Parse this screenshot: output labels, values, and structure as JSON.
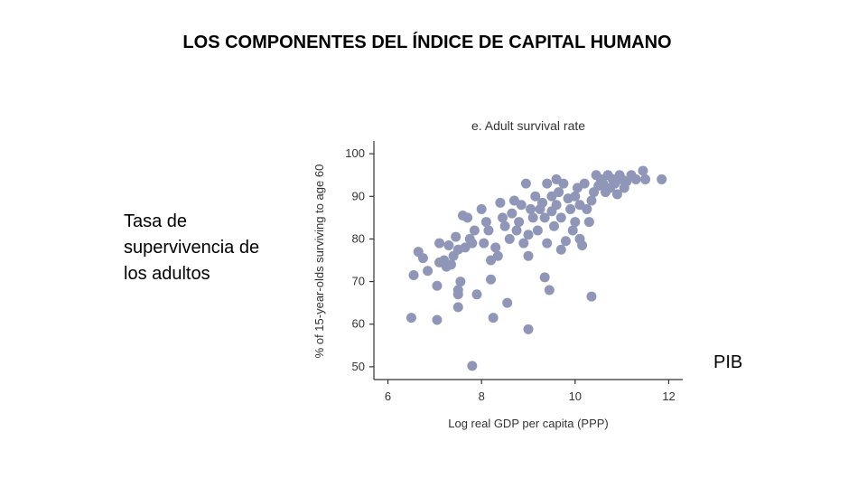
{
  "slide": {
    "title": "LOS COMPONENTES DEL ÍNDICE DE CAPITAL HUMANO",
    "side_label_lines": [
      "Tasa de",
      "supervivencia de",
      "los adultos"
    ],
    "x_annotation": "PIB"
  },
  "chart_data": {
    "type": "scatter",
    "title": "e. Adult survival rate",
    "xlabel": "Log real GDP per capita (PPP)",
    "ylabel": "% of 15-year-olds surviving to age 60",
    "xlim": [
      5.7,
      12.3
    ],
    "ylim": [
      47,
      103
    ],
    "xticks": [
      6,
      8,
      10,
      12
    ],
    "yticks": [
      50,
      60,
      70,
      80,
      90,
      100
    ],
    "grid": false,
    "marker_color": "#8f96b8",
    "points": [
      [
        6.5,
        61.5
      ],
      [
        6.55,
        71.5
      ],
      [
        6.65,
        77
      ],
      [
        6.75,
        75.5
      ],
      [
        6.85,
        72.5
      ],
      [
        7.05,
        61
      ],
      [
        7.05,
        69
      ],
      [
        7.1,
        79
      ],
      [
        7.1,
        74.5
      ],
      [
        7.2,
        75
      ],
      [
        7.25,
        73.5
      ],
      [
        7.3,
        78.5
      ],
      [
        7.35,
        74
      ],
      [
        7.4,
        76
      ],
      [
        7.45,
        80.5
      ],
      [
        7.5,
        77.5
      ],
      [
        7.5,
        68
      ],
      [
        7.5,
        67
      ],
      [
        7.5,
        64
      ],
      [
        7.55,
        70
      ],
      [
        7.6,
        85.5
      ],
      [
        7.65,
        78
      ],
      [
        7.7,
        85
      ],
      [
        7.75,
        80
      ],
      [
        7.8,
        79
      ],
      [
        7.8,
        50.2
      ],
      [
        7.85,
        82
      ],
      [
        7.9,
        67
      ],
      [
        8.0,
        87
      ],
      [
        8.05,
        79
      ],
      [
        8.1,
        84
      ],
      [
        8.15,
        82
      ],
      [
        8.2,
        75
      ],
      [
        8.2,
        70.5
      ],
      [
        8.25,
        61.5
      ],
      [
        8.3,
        78
      ],
      [
        8.35,
        76
      ],
      [
        8.4,
        88.5
      ],
      [
        8.45,
        85
      ],
      [
        8.5,
        83
      ],
      [
        8.55,
        65
      ],
      [
        8.6,
        80
      ],
      [
        8.65,
        86
      ],
      [
        8.7,
        89
      ],
      [
        8.75,
        82
      ],
      [
        8.8,
        84
      ],
      [
        8.85,
        88
      ],
      [
        8.9,
        79
      ],
      [
        8.95,
        93
      ],
      [
        9.0,
        58.8
      ],
      [
        9.0,
        76
      ],
      [
        9.0,
        81
      ],
      [
        9.05,
        87
      ],
      [
        9.1,
        85
      ],
      [
        9.15,
        90
      ],
      [
        9.2,
        82
      ],
      [
        9.25,
        87
      ],
      [
        9.3,
        88.5
      ],
      [
        9.35,
        71
      ],
      [
        9.35,
        85
      ],
      [
        9.4,
        79
      ],
      [
        9.4,
        93
      ],
      [
        9.45,
        68
      ],
      [
        9.5,
        90
      ],
      [
        9.5,
        86.5
      ],
      [
        9.55,
        83
      ],
      [
        9.6,
        94
      ],
      [
        9.6,
        88
      ],
      [
        9.65,
        91
      ],
      [
        9.7,
        77.5
      ],
      [
        9.7,
        85
      ],
      [
        9.75,
        93
      ],
      [
        9.8,
        79.5
      ],
      [
        9.85,
        89.5
      ],
      [
        9.9,
        87
      ],
      [
        9.95,
        82
      ],
      [
        10.0,
        84
      ],
      [
        10.0,
        90
      ],
      [
        10.05,
        92
      ],
      [
        10.1,
        88
      ],
      [
        10.1,
        80
      ],
      [
        10.15,
        78.5
      ],
      [
        10.2,
        93
      ],
      [
        10.25,
        87
      ],
      [
        10.3,
        84
      ],
      [
        10.35,
        66.5
      ],
      [
        10.35,
        89
      ],
      [
        10.4,
        91
      ],
      [
        10.45,
        95
      ],
      [
        10.5,
        92.5
      ],
      [
        10.55,
        94
      ],
      [
        10.6,
        93
      ],
      [
        10.65,
        91
      ],
      [
        10.7,
        95
      ],
      [
        10.75,
        92
      ],
      [
        10.8,
        94
      ],
      [
        10.85,
        93
      ],
      [
        10.9,
        90.5
      ],
      [
        10.95,
        95
      ],
      [
        11.0,
        94
      ],
      [
        11.05,
        92
      ],
      [
        11.1,
        93.5
      ],
      [
        11.2,
        95
      ],
      [
        11.3,
        94
      ],
      [
        11.45,
        96
      ],
      [
        11.5,
        94
      ],
      [
        11.85,
        94
      ]
    ]
  }
}
